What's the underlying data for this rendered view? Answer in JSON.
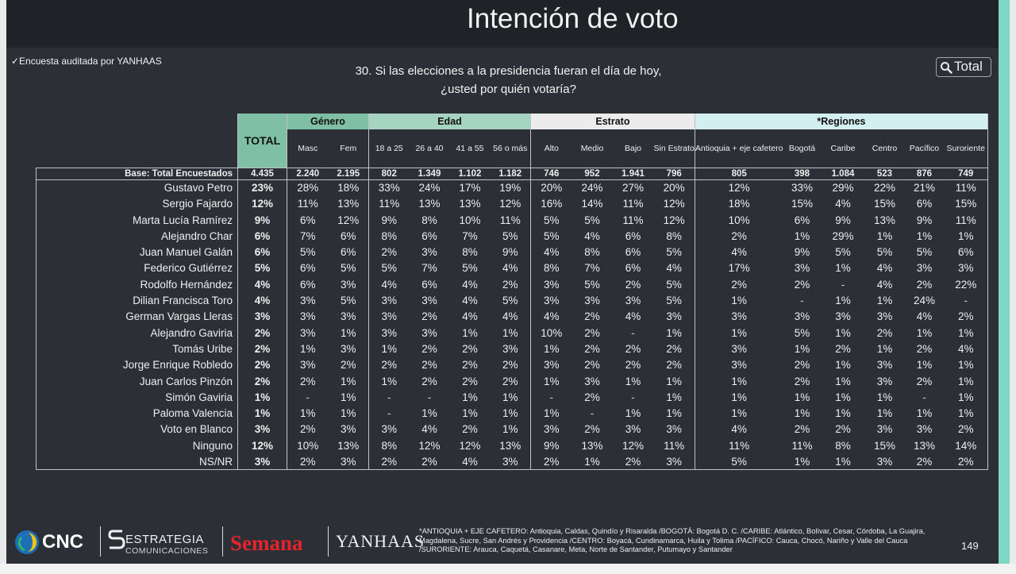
{
  "title": "Intención de voto",
  "audit_label": "✓Encuesta auditada por YANHAAS",
  "question": {
    "line1": "30. Si las elecciones a la presidencia fueran el día de hoy,",
    "line2": "¿usted por quién votaría?"
  },
  "total_button": "Total",
  "table": {
    "total_header": "TOTAL",
    "groups": [
      "Género",
      "Edad",
      "Estrato",
      "*Regiones"
    ],
    "subheaders": [
      "Masc",
      "Fem",
      "18 a 25",
      "26 a 40",
      "41 a 55",
      "56 o más",
      "Alto",
      "Medio",
      "Bajo",
      "Sin Estrato",
      "Antioquia + eje cafetero",
      "Bogotá",
      "Caribe",
      "Centro",
      "Pacífico",
      "Suroriente"
    ],
    "base": {
      "label": "Base: Total Encuestados",
      "total": "4.435",
      "values": [
        "2.240",
        "2.195",
        "802",
        "1.349",
        "1.102",
        "1.182",
        "746",
        "952",
        "1.941",
        "796",
        "805",
        "398",
        "1.084",
        "523",
        "876",
        "749"
      ]
    },
    "rows": [
      {
        "name": "Gustavo Petro",
        "total": "23%",
        "values": [
          "28%",
          "18%",
          "33%",
          "24%",
          "17%",
          "19%",
          "20%",
          "24%",
          "27%",
          "20%",
          "12%",
          "33%",
          "29%",
          "22%",
          "21%",
          "11%"
        ]
      },
      {
        "name": "Sergio Fajardo",
        "total": "12%",
        "values": [
          "11%",
          "13%",
          "11%",
          "13%",
          "13%",
          "12%",
          "16%",
          "14%",
          "11%",
          "12%",
          "18%",
          "15%",
          "4%",
          "15%",
          "6%",
          "15%"
        ]
      },
      {
        "name": "Marta Lucía Ramírez",
        "total": "9%",
        "values": [
          "6%",
          "12%",
          "9%",
          "8%",
          "10%",
          "11%",
          "5%",
          "5%",
          "11%",
          "12%",
          "10%",
          "6%",
          "9%",
          "13%",
          "9%",
          "11%"
        ]
      },
      {
        "name": "Alejandro Char",
        "total": "6%",
        "values": [
          "7%",
          "6%",
          "8%",
          "6%",
          "7%",
          "5%",
          "5%",
          "4%",
          "6%",
          "8%",
          "2%",
          "1%",
          "29%",
          "1%",
          "1%",
          "1%"
        ]
      },
      {
        "name": "Juan Manuel Galán",
        "total": "6%",
        "values": [
          "5%",
          "6%",
          "2%",
          "3%",
          "8%",
          "9%",
          "4%",
          "8%",
          "6%",
          "5%",
          "4%",
          "9%",
          "5%",
          "5%",
          "5%",
          "6%"
        ]
      },
      {
        "name": "Federico Gutiérrez",
        "total": "5%",
        "values": [
          "6%",
          "5%",
          "5%",
          "7%",
          "5%",
          "4%",
          "8%",
          "7%",
          "6%",
          "4%",
          "17%",
          "3%",
          "1%",
          "4%",
          "3%",
          "3%"
        ]
      },
      {
        "name": "Rodolfo Hernández",
        "total": "4%",
        "values": [
          "6%",
          "3%",
          "4%",
          "6%",
          "4%",
          "2%",
          "3%",
          "5%",
          "2%",
          "5%",
          "2%",
          "2%",
          "-",
          "4%",
          "2%",
          "22%"
        ]
      },
      {
        "name": "Dilian Francisca Toro",
        "total": "4%",
        "values": [
          "3%",
          "5%",
          "3%",
          "3%",
          "4%",
          "5%",
          "3%",
          "3%",
          "3%",
          "5%",
          "1%",
          "-",
          "1%",
          "1%",
          "24%",
          "-"
        ]
      },
      {
        "name": "German Vargas Lleras",
        "total": "3%",
        "values": [
          "3%",
          "3%",
          "3%",
          "2%",
          "4%",
          "4%",
          "4%",
          "2%",
          "4%",
          "3%",
          "3%",
          "3%",
          "3%",
          "3%",
          "4%",
          "2%"
        ]
      },
      {
        "name": "Alejandro Gaviria",
        "total": "2%",
        "values": [
          "3%",
          "1%",
          "3%",
          "3%",
          "1%",
          "1%",
          "10%",
          "2%",
          "-",
          "1%",
          "1%",
          "5%",
          "1%",
          "2%",
          "1%",
          "1%"
        ]
      },
      {
        "name": "Tomás Uribe",
        "total": "2%",
        "values": [
          "1%",
          "3%",
          "1%",
          "2%",
          "2%",
          "3%",
          "1%",
          "2%",
          "2%",
          "2%",
          "3%",
          "1%",
          "2%",
          "1%",
          "2%",
          "4%"
        ]
      },
      {
        "name": "Jorge Enrique Robledo",
        "total": "2%",
        "values": [
          "3%",
          "2%",
          "2%",
          "2%",
          "2%",
          "2%",
          "3%",
          "2%",
          "2%",
          "2%",
          "3%",
          "2%",
          "1%",
          "3%",
          "1%",
          "1%"
        ]
      },
      {
        "name": "Juan Carlos Pinzón",
        "total": "2%",
        "values": [
          "2%",
          "1%",
          "1%",
          "2%",
          "2%",
          "2%",
          "1%",
          "3%",
          "1%",
          "1%",
          "1%",
          "2%",
          "1%",
          "3%",
          "2%",
          "1%"
        ]
      },
      {
        "name": "Simón Gaviria",
        "total": "1%",
        "values": [
          "-",
          "1%",
          "-",
          "-",
          "1%",
          "1%",
          "-",
          "2%",
          "-",
          "1%",
          "1%",
          "1%",
          "1%",
          "1%",
          "-",
          "1%"
        ]
      },
      {
        "name": "Paloma Valencia",
        "total": "1%",
        "values": [
          "1%",
          "1%",
          "-",
          "1%",
          "1%",
          "1%",
          "1%",
          "-",
          "1%",
          "1%",
          "1%",
          "1%",
          "1%",
          "1%",
          "1%",
          "1%"
        ]
      },
      {
        "name": "Voto en Blanco",
        "total": "3%",
        "values": [
          "2%",
          "3%",
          "3%",
          "4%",
          "2%",
          "1%",
          "3%",
          "2%",
          "3%",
          "3%",
          "4%",
          "2%",
          "2%",
          "3%",
          "3%",
          "2%"
        ]
      },
      {
        "name": "Ninguno",
        "total": "12%",
        "values": [
          "10%",
          "13%",
          "8%",
          "12%",
          "12%",
          "13%",
          "9%",
          "13%",
          "12%",
          "11%",
          "11%",
          "11%",
          "8%",
          "15%",
          "13%",
          "14%"
        ]
      },
      {
        "name": "NS/NR",
        "total": "3%",
        "values": [
          "2%",
          "3%",
          "2%",
          "2%",
          "4%",
          "3%",
          "2%",
          "1%",
          "2%",
          "3%",
          "5%",
          "1%",
          "1%",
          "3%",
          "2%",
          "2%"
        ]
      }
    ]
  },
  "footer": {
    "logos": {
      "cnc": "CNC",
      "estrategia": "ESTRATEGIA",
      "estrategia_sub": "COMUNICACIONES",
      "semana": "Semana",
      "yanhaas": "YANHAAS"
    },
    "notes": "*ANTIOQUIA + EJE CAFETERO: Antioquia, Caldas, Quindío y Risaralda /BOGOTÁ: Bogotá D. C. /CARIBE: Atlántico, Bolívar, Cesar, Córdoba, La Guajira, Magdalena, Sucre, San Andrés y Providencia /CENTRO: Boyacá, Cundinamarca, Huila y Tolima /PACÍFICO: Cauca, Chocó, Nariño y Valle del Cauca /SURORIENTE: Arauca, Caquetá, Casanare, Meta, Norte de Santander, Putumayo y Santander",
    "page_number": "149"
  },
  "colors": {
    "background": "#2c3036",
    "total_header": "#7ebfa6",
    "edad_header": "#a6d4c2",
    "estrato_header": "#ececec",
    "regiones_header": "#d4efef",
    "semana_red": "#e3242b",
    "accent_stripe": "#7fd6c4"
  }
}
